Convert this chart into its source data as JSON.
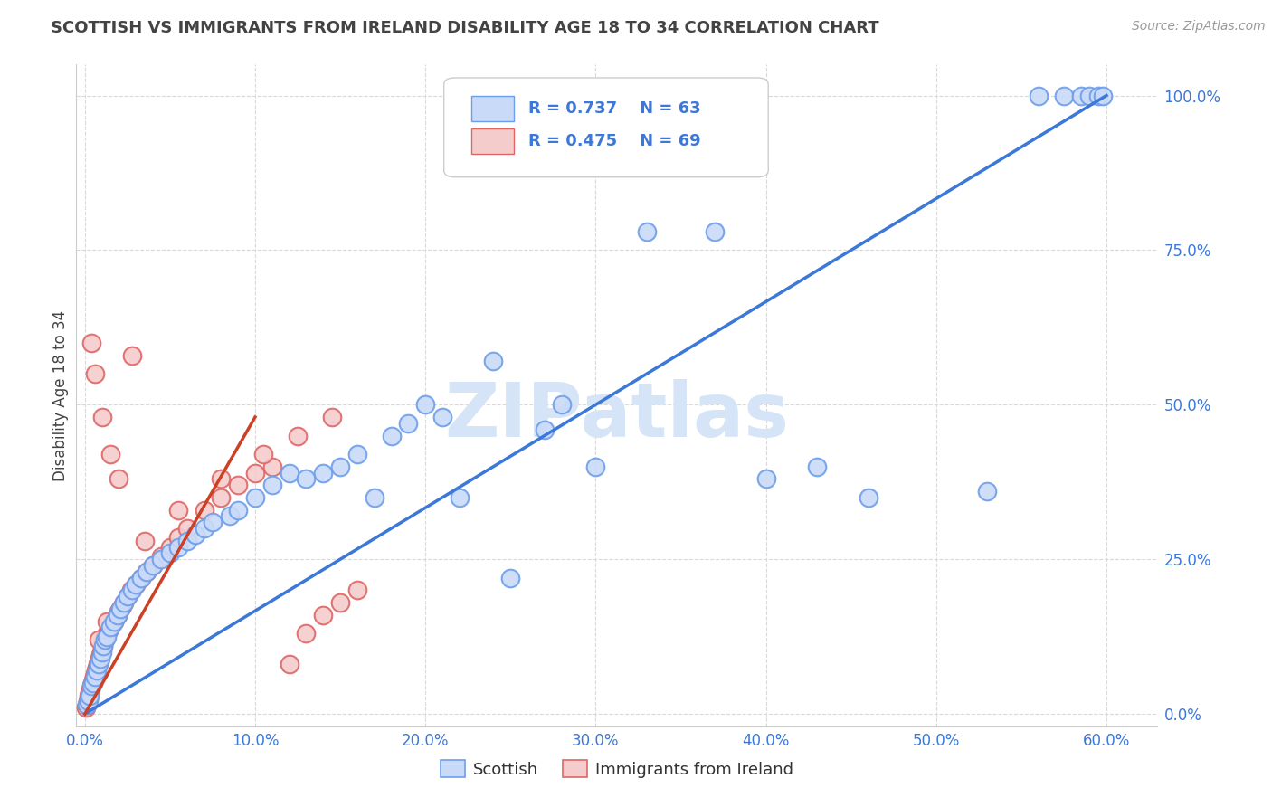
{
  "title": "SCOTTISH VS IMMIGRANTS FROM IRELAND DISABILITY AGE 18 TO 34 CORRELATION CHART",
  "source": "Source: ZipAtlas.com",
  "xlabel_ticks": [
    "0.0%",
    "10.0%",
    "20.0%",
    "30.0%",
    "40.0%",
    "50.0%",
    "60.0%"
  ],
  "ylabel_ticks": [
    "0.0%",
    "25.0%",
    "50.0%",
    "75.0%",
    "100.0%"
  ],
  "xlim": [
    -1.0,
    63.0
  ],
  "ylim": [
    -2.0,
    105.0
  ],
  "ylabel": "Disability Age 18 to 34",
  "legend_label_blue": "Scottish",
  "legend_label_pink": "Immigrants from Ireland",
  "legend_R_blue": "R = 0.737",
  "legend_R_pink": "R = 0.475",
  "legend_N_blue": "N = 63",
  "legend_N_pink": "N = 69",
  "blue_fill": "#c9daf8",
  "blue_edge": "#6d9eeb",
  "pink_fill": "#f4cccc",
  "pink_edge": "#e06666",
  "blue_line_color": "#3c78d8",
  "pink_line_color": "#cc4125",
  "ref_line_color": "#e8c8c8",
  "title_color": "#434343",
  "source_color": "#999999",
  "watermark": "ZIPatlas",
  "watermark_color": "#d6e4f7",
  "axis_label_color": "#3c78d8",
  "x_label_color": "#3c78d8",
  "background_color": "#ffffff",
  "grid_color": "#d9d9d9",
  "blue_scatter_x": [
    0.1,
    0.2,
    0.3,
    0.4,
    0.5,
    0.6,
    0.7,
    0.8,
    0.9,
    1.0,
    1.1,
    1.2,
    1.3,
    1.5,
    1.7,
    1.9,
    2.1,
    2.3,
    2.5,
    2.8,
    3.0,
    3.3,
    3.6,
    4.0,
    4.5,
    5.0,
    5.5,
    6.0,
    6.5,
    7.0,
    7.5,
    8.5,
    9.0,
    10.0,
    11.0,
    12.0,
    13.0,
    14.0,
    15.0,
    16.0,
    17.0,
    18.0,
    19.0,
    20.0,
    21.0,
    22.0,
    24.0,
    25.0,
    27.0,
    28.0,
    30.0,
    33.0,
    37.0,
    40.0,
    43.0,
    46.0,
    53.0,
    56.0,
    57.5,
    58.5,
    59.0,
    59.5,
    59.8
  ],
  "blue_scatter_y": [
    1.5,
    2.0,
    3.0,
    4.5,
    5.0,
    6.0,
    7.0,
    8.0,
    9.0,
    10.0,
    11.0,
    12.0,
    12.5,
    14.0,
    15.0,
    16.0,
    17.0,
    18.0,
    19.0,
    20.0,
    21.0,
    22.0,
    23.0,
    24.0,
    25.0,
    26.0,
    27.0,
    28.0,
    29.0,
    30.0,
    31.0,
    32.0,
    33.0,
    35.0,
    37.0,
    39.0,
    38.0,
    39.0,
    40.0,
    42.0,
    35.0,
    45.0,
    47.0,
    50.0,
    48.0,
    35.0,
    57.0,
    22.0,
    46.0,
    50.0,
    40.0,
    78.0,
    78.0,
    38.0,
    40.0,
    35.0,
    36.0,
    100.0,
    100.0,
    100.0,
    100.0,
    100.0,
    100.0
  ],
  "pink_scatter_x": [
    0.05,
    0.1,
    0.15,
    0.2,
    0.25,
    0.3,
    0.35,
    0.4,
    0.45,
    0.5,
    0.55,
    0.6,
    0.65,
    0.7,
    0.75,
    0.8,
    0.85,
    0.9,
    0.95,
    1.0,
    1.05,
    1.1,
    1.15,
    1.2,
    1.3,
    1.4,
    1.5,
    1.6,
    1.7,
    1.8,
    1.9,
    2.0,
    2.1,
    2.2,
    2.3,
    2.5,
    2.7,
    3.0,
    3.3,
    3.6,
    4.0,
    4.5,
    5.0,
    5.5,
    6.0,
    7.0,
    8.0,
    9.0,
    10.0,
    11.0,
    12.0,
    13.0,
    14.0,
    15.0,
    16.0,
    2.8,
    0.4,
    0.6,
    1.0,
    1.5,
    2.0,
    3.5,
    5.5,
    8.0,
    10.5,
    12.5,
    14.5,
    0.8,
    1.3
  ],
  "pink_scatter_y": [
    1.0,
    1.5,
    2.0,
    2.5,
    3.0,
    3.5,
    4.0,
    4.5,
    5.0,
    5.5,
    6.0,
    6.5,
    7.0,
    7.5,
    8.0,
    8.5,
    9.0,
    9.5,
    10.0,
    10.5,
    11.0,
    11.5,
    12.0,
    12.5,
    13.0,
    13.5,
    14.0,
    14.5,
    15.0,
    15.5,
    16.0,
    16.5,
    17.0,
    17.5,
    18.0,
    19.0,
    20.0,
    21.0,
    22.0,
    23.0,
    24.0,
    25.5,
    27.0,
    28.5,
    30.0,
    33.0,
    35.0,
    37.0,
    39.0,
    40.0,
    8.0,
    13.0,
    16.0,
    18.0,
    20.0,
    58.0,
    60.0,
    55.0,
    48.0,
    42.0,
    38.0,
    28.0,
    33.0,
    38.0,
    42.0,
    45.0,
    48.0,
    12.0,
    15.0
  ],
  "blue_line_x": [
    0,
    60
  ],
  "blue_line_y": [
    0,
    100
  ],
  "pink_line_x": [
    0,
    10
  ],
  "pink_line_y": [
    0,
    48
  ],
  "ref_line_x": [
    0,
    60
  ],
  "ref_line_y": [
    0,
    100
  ]
}
